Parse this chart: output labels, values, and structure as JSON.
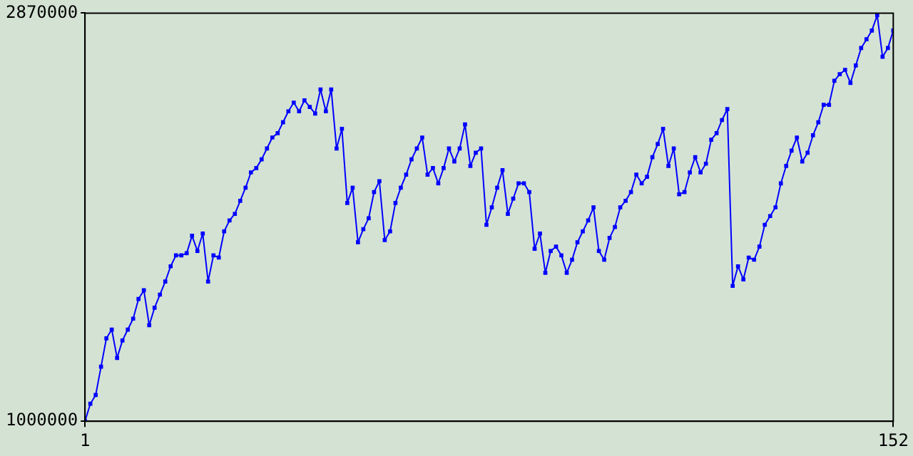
{
  "chart_data": {
    "type": "line",
    "x": [
      1,
      2,
      3,
      4,
      5,
      6,
      7,
      8,
      9,
      10,
      11,
      12,
      13,
      14,
      15,
      16,
      17,
      18,
      19,
      20,
      21,
      22,
      23,
      24,
      25,
      26,
      27,
      28,
      29,
      30,
      31,
      32,
      33,
      34,
      35,
      36,
      37,
      38,
      39,
      40,
      41,
      42,
      43,
      44,
      45,
      46,
      47,
      48,
      49,
      50,
      51,
      52,
      53,
      54,
      55,
      56,
      57,
      58,
      59,
      60,
      61,
      62,
      63,
      64,
      65,
      66,
      67,
      68,
      69,
      70,
      71,
      72,
      73,
      74,
      75,
      76,
      77,
      78,
      79,
      80,
      81,
      82,
      83,
      84,
      85,
      86,
      87,
      88,
      89,
      90,
      91,
      92,
      93,
      94,
      95,
      96,
      97,
      98,
      99,
      100,
      101,
      102,
      103,
      104,
      105,
      106,
      107,
      108,
      109,
      110,
      111,
      112,
      113,
      114,
      115,
      116,
      117,
      118,
      119,
      120,
      121,
      122,
      123,
      124,
      125,
      126,
      127,
      128,
      129,
      130,
      131,
      132,
      133,
      134,
      135,
      136,
      137,
      138,
      139,
      140,
      141,
      142,
      143,
      144,
      145,
      146,
      147,
      148,
      149,
      150,
      151,
      152
    ],
    "series": [
      {
        "color": "#0000ff",
        "values": [
          1000000,
          1080000,
          1120000,
          1250000,
          1380000,
          1420000,
          1290000,
          1370000,
          1420000,
          1470000,
          1560000,
          1600000,
          1440000,
          1520000,
          1580000,
          1640000,
          1710000,
          1760000,
          1760000,
          1770000,
          1850000,
          1780000,
          1860000,
          1640000,
          1760000,
          1750000,
          1870000,
          1920000,
          1950000,
          2010000,
          2070000,
          2140000,
          2160000,
          2200000,
          2250000,
          2300000,
          2320000,
          2370000,
          2420000,
          2460000,
          2420000,
          2470000,
          2440000,
          2410000,
          2520000,
          2420000,
          2520000,
          2250000,
          2340000,
          2000000,
          2070000,
          1820000,
          1880000,
          1930000,
          2050000,
          2100000,
          1830000,
          1870000,
          2000000,
          2070000,
          2130000,
          2200000,
          2250000,
          2300000,
          2130000,
          2160000,
          2090000,
          2160000,
          2250000,
          2190000,
          2250000,
          2360000,
          2170000,
          2230000,
          2250000,
          1900000,
          1980000,
          2070000,
          2150000,
          1950000,
          2020000,
          2090000,
          2090000,
          2050000,
          1790000,
          1860000,
          1680000,
          1780000,
          1800000,
          1760000,
          1680000,
          1740000,
          1820000,
          1870000,
          1920000,
          1980000,
          1780000,
          1740000,
          1840000,
          1890000,
          1980000,
          2010000,
          2050000,
          2130000,
          2090000,
          2120000,
          2210000,
          2270000,
          2340000,
          2170000,
          2250000,
          2040000,
          2050000,
          2140000,
          2210000,
          2140000,
          2180000,
          2290000,
          2320000,
          2380000,
          2430000,
          1620000,
          1710000,
          1650000,
          1750000,
          1740000,
          1800000,
          1900000,
          1940000,
          1980000,
          2090000,
          2170000,
          2240000,
          2300000,
          2190000,
          2230000,
          2310000,
          2370000,
          2450000,
          2450000,
          2560000,
          2590000,
          2610000,
          2550000,
          2630000,
          2710000,
          2750000,
          2790000,
          2860000,
          2670000,
          2710000,
          2790000
        ]
      }
    ],
    "xlim": [
      1,
      152
    ],
    "xticks": [
      1,
      152
    ],
    "ylim": [
      1000000,
      2870000
    ],
    "yticks": [
      1000000,
      2870000
    ],
    "grid": false,
    "legend": false,
    "marker": "square",
    "line_style": "solid"
  }
}
